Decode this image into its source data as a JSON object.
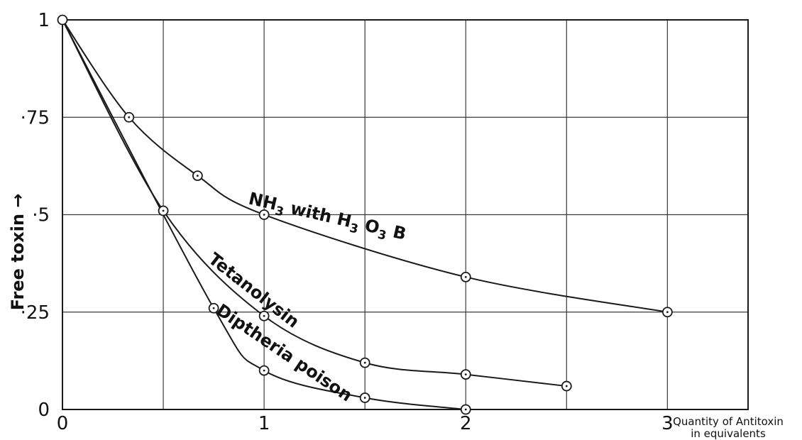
{
  "chart_data": {
    "type": "line",
    "title": "",
    "xlabel": "Quantity of Antitoxin in equivalents",
    "xlabel_lines": [
      "Quantity of Antitoxin",
      "in equivalents"
    ],
    "ylabel": "Free toxin →",
    "xlim": [
      0,
      3.4
    ],
    "ylim": [
      0,
      1
    ],
    "x_ticks": [
      0,
      0.5,
      1,
      1.5,
      2,
      2.5,
      3,
      3.5
    ],
    "x_tick_labels": [
      {
        "value": 0,
        "label": "0"
      },
      {
        "value": 1,
        "label": "1"
      },
      {
        "value": 2,
        "label": "2"
      },
      {
        "value": 3,
        "label": "3"
      }
    ],
    "y_ticks": [
      0,
      0.25,
      0.5,
      0.75,
      1
    ],
    "y_tick_labels": [
      {
        "value": 0,
        "label": "0"
      },
      {
        "value": 0.25,
        "label": "·25"
      },
      {
        "value": 0.5,
        "label": "·5"
      },
      {
        "value": 0.75,
        "label": "·75"
      },
      {
        "value": 1,
        "label": "1"
      }
    ],
    "grid": true,
    "series": [
      {
        "name": "NH₃ with H₃O₃B",
        "label_text": "NH3 with H3O3B",
        "x": [
          0,
          0.33,
          0.67,
          1.0,
          2.0,
          3.0
        ],
        "y": [
          1.0,
          0.75,
          0.6,
          0.5,
          0.34,
          0.25
        ]
      },
      {
        "name": "Tetanolysin",
        "label_text": "Tetanolysin",
        "x": [
          0,
          0.5,
          1.0,
          1.5,
          2.0,
          2.5
        ],
        "y": [
          1.0,
          0.51,
          0.24,
          0.12,
          0.09,
          0.06
        ]
      },
      {
        "name": "Diptheria poison",
        "label_text": "Diptheria poison",
        "x": [
          0,
          0.75,
          1.0,
          1.5,
          2.0
        ],
        "y": [
          1.0,
          0.26,
          0.1,
          0.03,
          0.0
        ]
      }
    ]
  }
}
